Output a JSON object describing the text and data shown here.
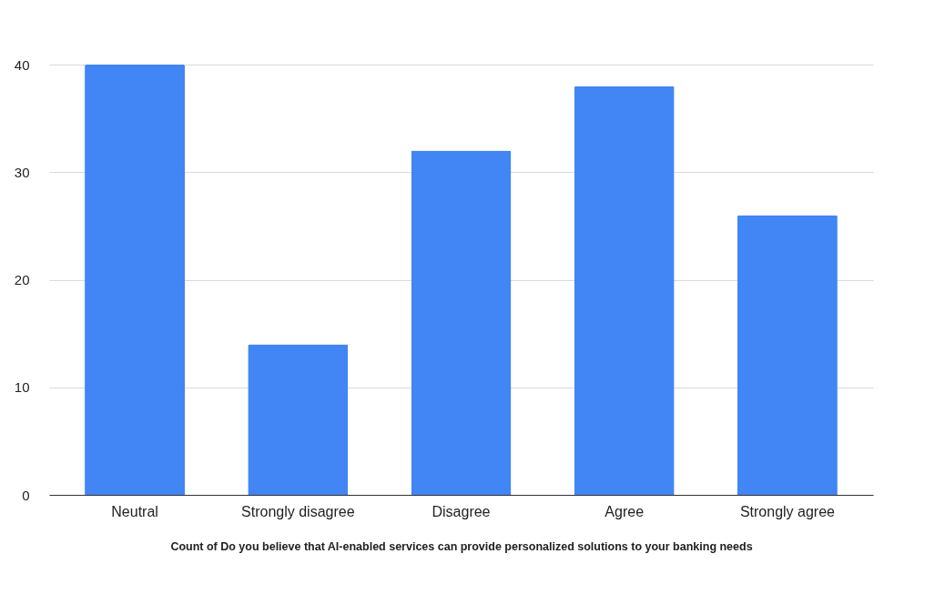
{
  "chart_data": {
    "type": "bar",
    "categories": [
      "Neutral",
      "Strongly disagree",
      "Disagree",
      "Agree",
      "Strongly agree"
    ],
    "values": [
      40,
      14,
      32,
      38,
      26
    ],
    "color": "#4285f4",
    "xlabel": "Count of Do you believe that AI-enabled services can provide personalized solutions to your banking needs",
    "ylim": [
      0,
      40
    ],
    "yticks": [
      0,
      10,
      20,
      30,
      40
    ],
    "grid": "y"
  }
}
